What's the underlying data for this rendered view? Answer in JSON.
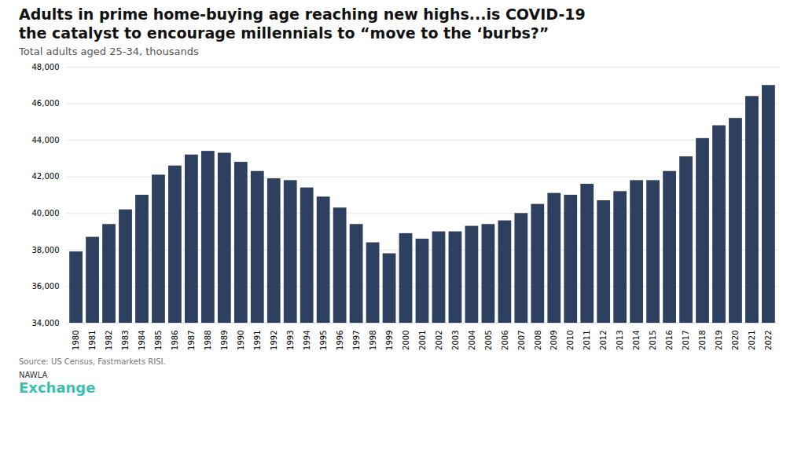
{
  "chart_data": {
    "type": "bar",
    "title": "Adults in prime home-buying age reaching new highs...is COVID-19\nthe catalyst to encourage millennials to “move to the ‘burbs?”",
    "subtitle": "Total adults aged 25-34, thousands",
    "annotations": [
      "Source: US Census, Fastmarkets RISI.",
      "NAWLA",
      "Exchange"
    ],
    "categories": [
      "1980",
      "1981",
      "1982",
      "1983",
      "1984",
      "1985",
      "1986",
      "1987",
      "1988",
      "1989",
      "1990",
      "1991",
      "1992",
      "1993",
      "1994",
      "1995",
      "1996",
      "1997",
      "1998",
      "1999",
      "2000",
      "2001",
      "2002",
      "2003",
      "2004",
      "2005",
      "2006",
      "2007",
      "2008",
      "2009",
      "2010",
      "2011",
      "2012",
      "2013",
      "2014",
      "2015",
      "2016",
      "2017",
      "2018",
      "2019",
      "2020",
      "2021",
      "2022"
    ],
    "values": [
      37900,
      38700,
      39400,
      40200,
      41000,
      42100,
      42600,
      43200,
      43400,
      43300,
      42800,
      42300,
      41900,
      41800,
      41400,
      40900,
      40300,
      39400,
      38400,
      37800,
      38900,
      38600,
      39000,
      39000,
      39300,
      39400,
      39600,
      40000,
      40500,
      41100,
      41000,
      41600,
      40700,
      41200,
      41800,
      41800,
      42300,
      43100,
      44100,
      44800,
      45200,
      46400,
      47000
    ],
    "color": "#2d4060",
    "ylim": [
      34000,
      48000
    ],
    "yticks": [
      {
        "value": 34000,
        "label": "34,000"
      },
      {
        "value": 36000,
        "label": "36,000"
      },
      {
        "value": 38000,
        "label": "38,000"
      },
      {
        "value": 40000,
        "label": "40,000"
      },
      {
        "value": 42000,
        "label": "42,000"
      },
      {
        "value": 44000,
        "label": "44,000"
      },
      {
        "value": 46000,
        "label": "46,000"
      },
      {
        "value": 48000,
        "label": "48,000"
      }
    ],
    "grid": true
  }
}
